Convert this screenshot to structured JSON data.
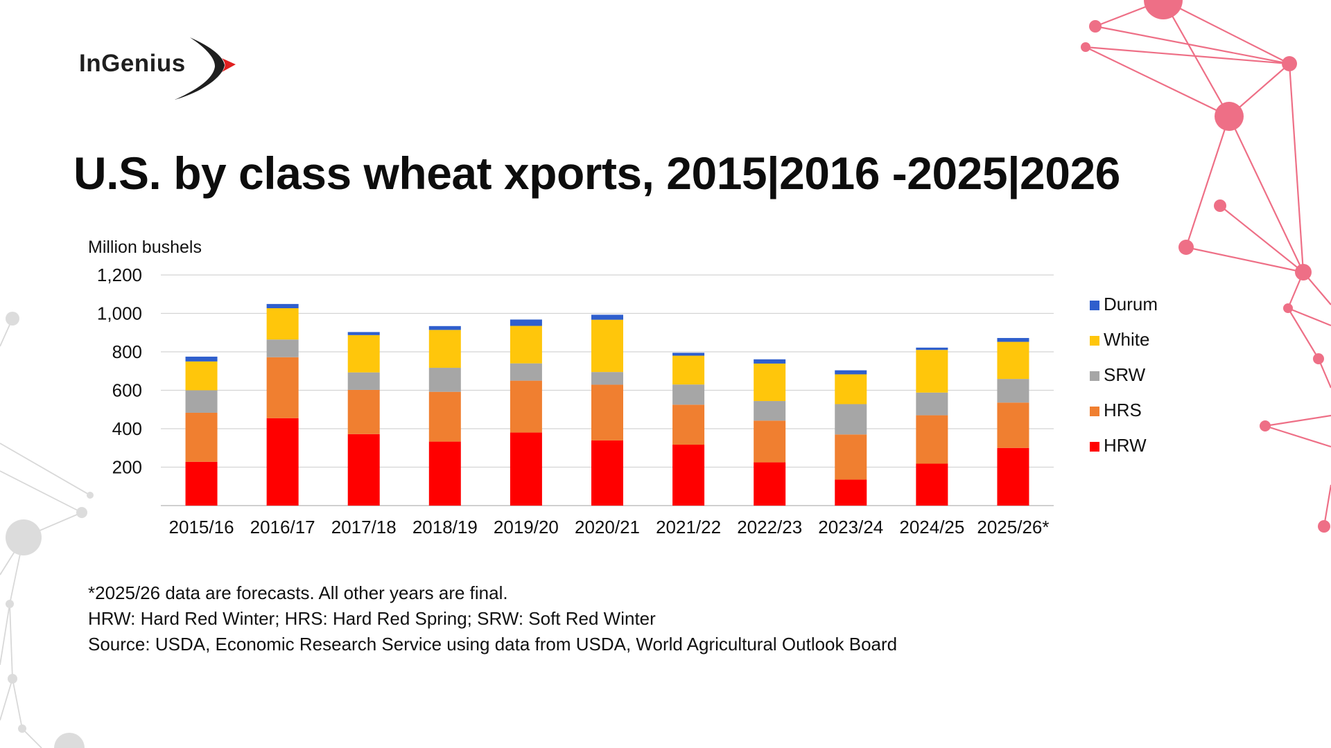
{
  "brand": {
    "name": "InGenius",
    "accent": "#e02020"
  },
  "page_title": "U.S. by class wheat xports, 2015|2016 -2025|2026",
  "notes": [
    "*2025/26 data are forecasts. All other years are final.",
    "HRW: Hard Red Winter; HRS: Hard Red Spring; SRW: Soft Red Winter",
    "Source: USDA, Economic Research Service using data from USDA, World Agricultural Outlook Board"
  ],
  "chart_data": {
    "type": "bar",
    "stacked": true,
    "title": "",
    "ylabel": "Million bushels",
    "xlabel": "",
    "ylim": [
      0,
      1200
    ],
    "yticks": [
      200,
      400,
      600,
      800,
      1000,
      1200
    ],
    "ytick_labels": [
      "200",
      "400",
      "600",
      "800",
      "1,000",
      "1,200"
    ],
    "grid": true,
    "legend": "right",
    "categories": [
      "2015/16",
      "2016/17",
      "2017/18",
      "2018/19",
      "2019/20",
      "2020/21",
      "2021/22",
      "2022/23",
      "2023/24",
      "2024/25",
      "2025/26*"
    ],
    "series": [
      {
        "name": "HRW",
        "color": "#ff0000",
        "values": [
          228,
          455,
          372,
          333,
          380,
          339,
          317,
          225,
          135,
          218,
          300
        ]
      },
      {
        "name": "HRS",
        "color": "#f07f30",
        "values": [
          255,
          317,
          230,
          259,
          270,
          290,
          208,
          217,
          235,
          252,
          236
        ]
      },
      {
        "name": "SRW",
        "color": "#a6a6a6",
        "values": [
          117,
          92,
          91,
          125,
          90,
          66,
          105,
          102,
          158,
          118,
          123
        ]
      },
      {
        "name": "White",
        "color": "#ffc60b",
        "values": [
          150,
          163,
          194,
          197,
          195,
          272,
          150,
          195,
          155,
          222,
          193
        ]
      },
      {
        "name": "Durum",
        "color": "#2f5fcd",
        "values": [
          25,
          22,
          16,
          20,
          33,
          26,
          15,
          22,
          21,
          12,
          20
        ]
      }
    ]
  }
}
